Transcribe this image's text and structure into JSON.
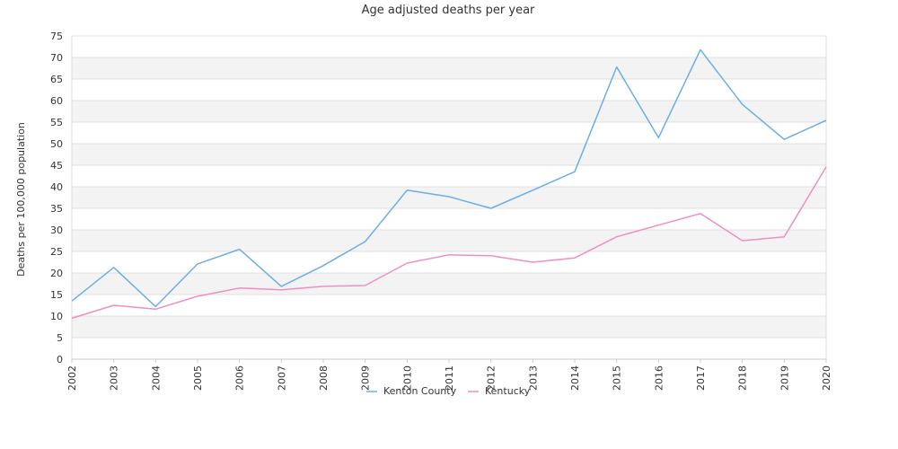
{
  "chart_data": {
    "type": "line",
    "title": "Age adjusted deaths per year",
    "xlabel": "",
    "ylabel": "Deaths per 100,000 population",
    "ylim": [
      0,
      75
    ],
    "yticks": [
      0,
      5,
      10,
      15,
      20,
      25,
      30,
      35,
      40,
      45,
      50,
      55,
      60,
      65,
      70,
      75
    ],
    "x_tick_labels": [
      "2002",
      "2003",
      "2004",
      "2005",
      "2006",
      "2007",
      "2008",
      "2009",
      "2010",
      "2011",
      "2012",
      "2013",
      "2014",
      "2015",
      "2016",
      "2017",
      "2018",
      "2019",
      "2020"
    ],
    "legend_placement": "bottom-center",
    "grid": "alternating horizontal bands",
    "series": [
      {
        "name": "Kenton County",
        "color": "#6aaee8",
        "values": [
          13.5,
          21.3,
          12.2,
          22.1,
          25.5,
          16.9,
          21.7,
          27.3,
          39.2,
          37.7,
          35.0,
          39.2,
          43.5,
          67.8,
          51.4,
          71.8,
          59.1,
          51.0,
          55.4
        ]
      },
      {
        "name": "Kentucky",
        "color": "#ee8fc2",
        "values": [
          9.5,
          12.5,
          11.6,
          14.6,
          16.5,
          16.1,
          16.9,
          17.1,
          22.3,
          24.2,
          24.0,
          22.5,
          23.5,
          28.4,
          31.1,
          33.8,
          27.5,
          28.4,
          44.6
        ]
      }
    ]
  }
}
